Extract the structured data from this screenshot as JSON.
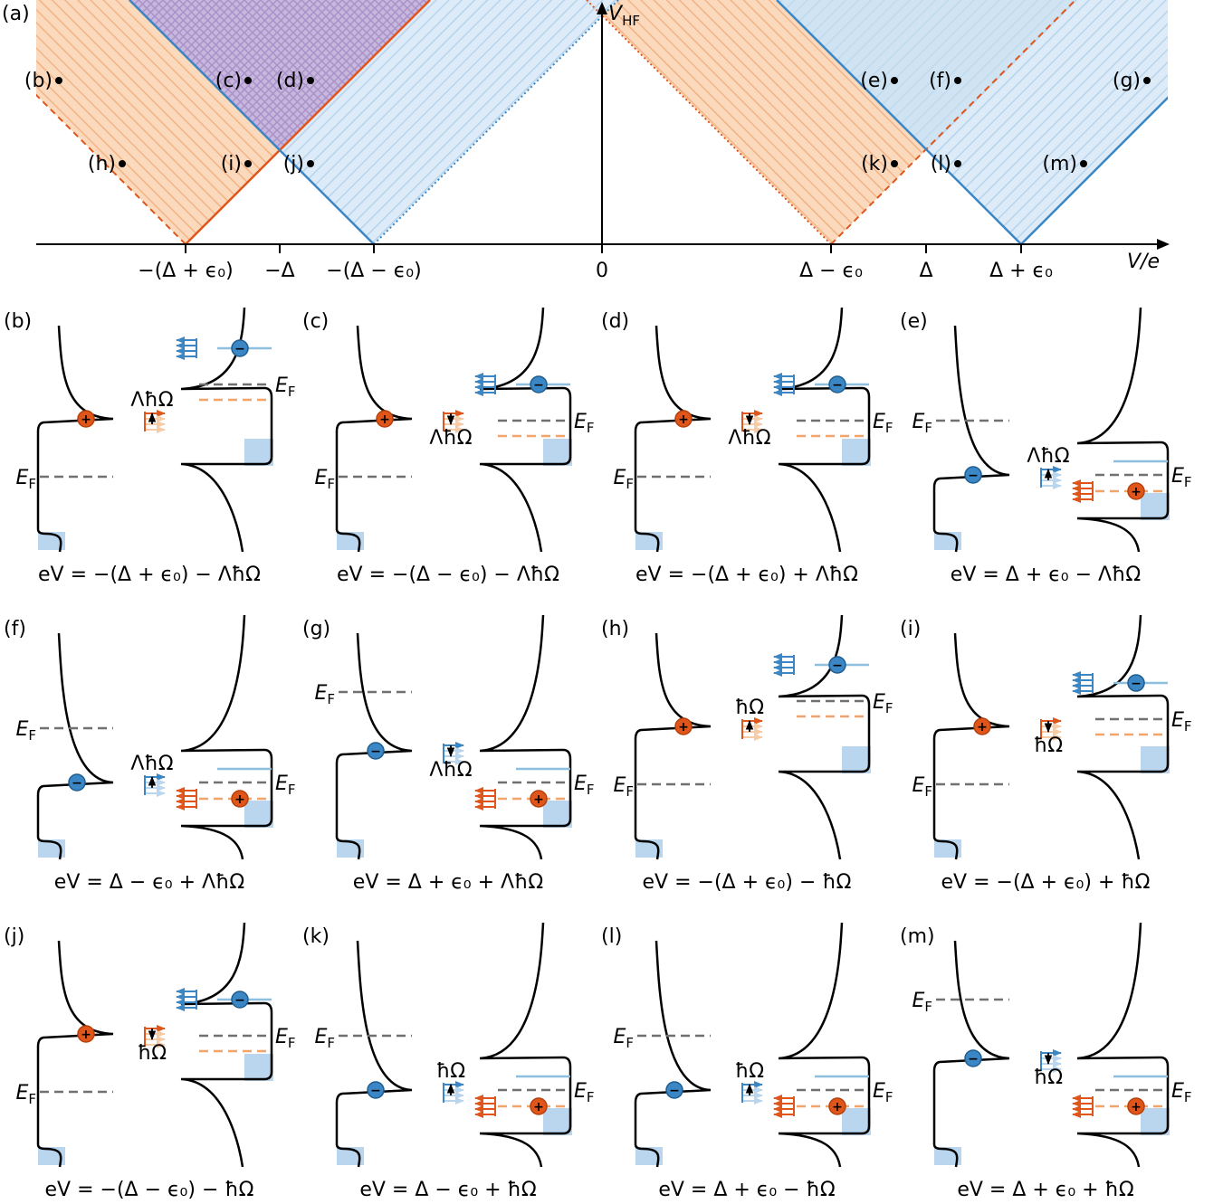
{
  "colors": {
    "orange": "#e0561a",
    "orange_light": "#f7cba6",
    "blue": "#3b86c4",
    "blue_light": "#b9d6ee",
    "purple": "#b7a2d2",
    "gray": "#707070"
  },
  "top_panel": {
    "panel_label": "(a)",
    "y_axis_label": "V",
    "y_axis_sub": "HF",
    "x_axis_label": "V/e",
    "ticks": [
      "−(Δ + ϵ₀)",
      "−Δ",
      "−(Δ − ϵ₀)",
      "0",
      "Δ − ϵ₀",
      "Δ",
      "Δ + ϵ₀"
    ],
    "point_labels": [
      "(b)",
      "(c)",
      "(d)",
      "(e)",
      "(f)",
      "(g)",
      "(h)",
      "(i)",
      "(j)",
      "(k)",
      "(l)",
      "(m)"
    ]
  },
  "panels": [
    {
      "label": "(b)",
      "equation": "eV = −(Δ + ϵ₀) − ΛħΩ",
      "photon": "ΛħΩ",
      "carrier": "+"
    },
    {
      "label": "(c)",
      "equation": "eV = −(Δ − ϵ₀) − ΛħΩ",
      "photon": "ΛħΩ",
      "carrier": "+"
    },
    {
      "label": "(d)",
      "equation": "eV = −(Δ + ϵ₀) + ΛħΩ",
      "photon": "ΛħΩ",
      "carrier": "+"
    },
    {
      "label": "(e)",
      "equation": "eV = Δ + ϵ₀ − ΛħΩ",
      "photon": "ΛħΩ",
      "carrier": "−"
    },
    {
      "label": "(f)",
      "equation": "eV = Δ − ϵ₀ + ΛħΩ",
      "photon": "ΛħΩ",
      "carrier": "−"
    },
    {
      "label": "(g)",
      "equation": "eV = Δ + ϵ₀ + ΛħΩ",
      "photon": "ΛħΩ",
      "carrier": "−"
    },
    {
      "label": "(h)",
      "equation": "eV = −(Δ + ϵ₀) − ħΩ",
      "photon": "ħΩ",
      "carrier": "+"
    },
    {
      "label": "(i)",
      "equation": "eV = −(Δ + ϵ₀) + ħΩ",
      "photon": "ħΩ",
      "carrier": "+"
    },
    {
      "label": "(j)",
      "equation": "eV = −(Δ − ϵ₀) − ħΩ",
      "photon": "ħΩ",
      "carrier": "+"
    },
    {
      "label": "(k)",
      "equation": "eV = Δ − ϵ₀ + ħΩ",
      "photon": "ħΩ",
      "carrier": "−"
    },
    {
      "label": "(l)",
      "equation": "eV = Δ + ϵ₀ − ħΩ",
      "photon": "ħΩ",
      "carrier": "−"
    },
    {
      "label": "(m)",
      "equation": "eV = Δ + ϵ₀ + ħΩ",
      "photon": "ħΩ",
      "carrier": "−"
    }
  ],
  "fermi_label": "E",
  "fermi_sub": "F"
}
